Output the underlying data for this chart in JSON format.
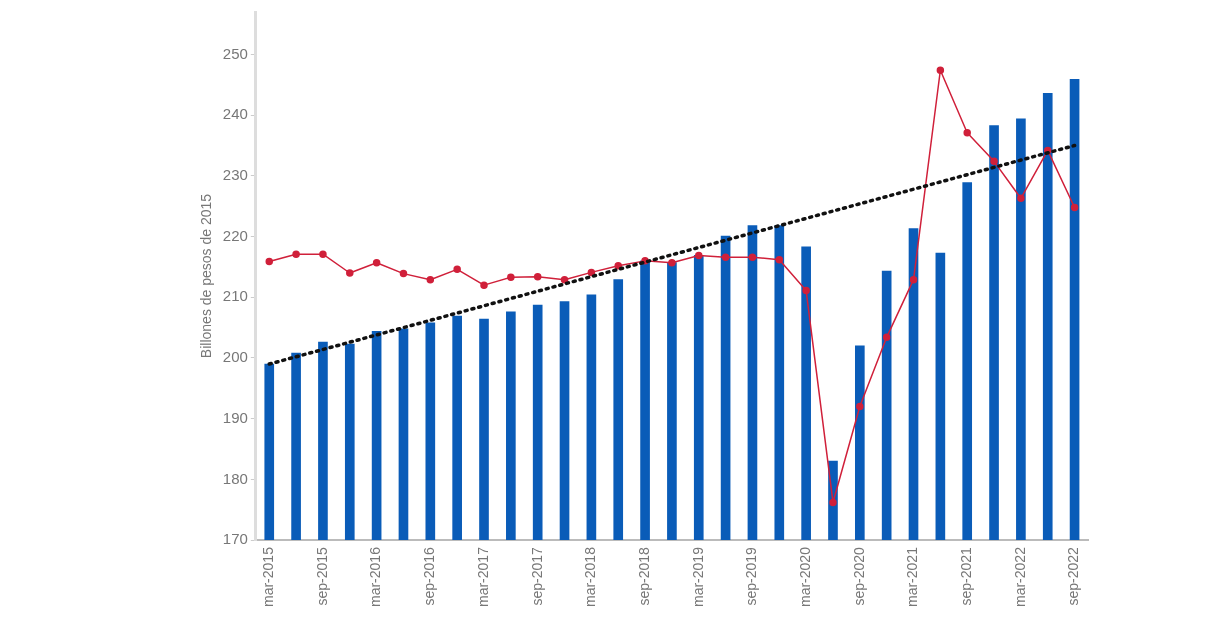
{
  "chart_data": {
    "type": "bar",
    "ylabel": "Billones de pesos de 2015",
    "categories": [
      "mar-2015",
      null,
      "sep-2015",
      null,
      "mar-2016",
      null,
      "sep-2016",
      null,
      "mar-2017",
      null,
      "sep-2017",
      null,
      "mar-2018",
      null,
      "sep-2018",
      null,
      "mar-2019",
      null,
      "sep-2019",
      null,
      "mar-2020",
      null,
      "sep-2020",
      null,
      "mar-2021",
      null,
      "sep-2021",
      null,
      "mar-2022",
      null,
      "sep-2022"
    ],
    "series": [
      {
        "color": "#0a5cb8",
        "values": [
          199.0,
          200.8,
          202.6,
          202.3,
          204.4,
          204.8,
          205.8,
          206.9,
          206.4,
          207.6,
          208.7,
          209.3,
          210.4,
          212.9,
          216.0,
          215.7,
          216.9,
          220.1,
          221.8,
          221.8,
          218.3,
          183.0,
          202.0,
          214.3,
          221.3,
          217.3,
          228.9,
          238.3,
          239.4,
          243.6,
          245.9
        ]
      },
      {
        "type": "line",
        "color": "#d0203a",
        "marker": "circle",
        "line_style": "solid",
        "values": [
          215.9,
          217.1,
          217.1,
          214.0,
          215.7,
          213.9,
          212.9,
          214.6,
          212.0,
          213.3,
          213.4,
          212.9,
          214.1,
          215.2,
          216.0,
          215.7,
          216.9,
          216.6,
          216.6,
          216.2,
          211.1,
          176.2,
          192.0,
          203.4,
          212.9,
          247.4,
          237.1,
          232.4,
          226.3,
          234.2,
          224.8
        ]
      },
      {
        "type": "line",
        "color": "#111111",
        "marker": "none",
        "line_style": "dotted",
        "x": [
          "mar-2015",
          "sep-2022"
        ],
        "values": [
          199.0,
          235.0
        ]
      }
    ],
    "ylim": [
      170,
      257
    ],
    "yticks": [
      170,
      180,
      190,
      200,
      210,
      220,
      230,
      240,
      250
    ],
    "grid": false,
    "legend": false
  }
}
